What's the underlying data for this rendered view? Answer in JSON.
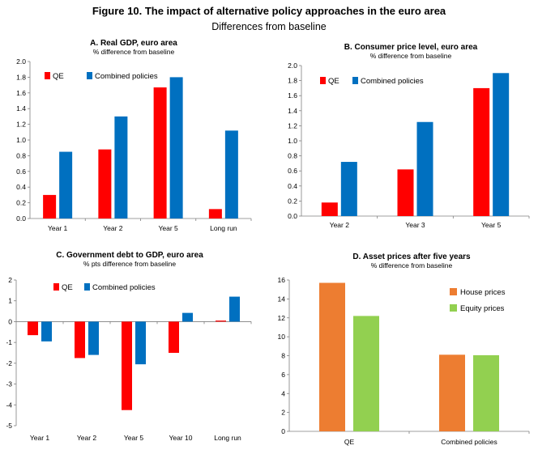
{
  "figure": {
    "title": "Figure 10. The impact of alternative policy approaches in the euro area",
    "subtitle": "Differences from baseline"
  },
  "colors": {
    "qe": "#ff0000",
    "combined": "#0070c0",
    "house": "#ed7d31",
    "equity": "#92d050",
    "axis": "#7f7f7f"
  },
  "chart_data": [
    {
      "id": "A",
      "type": "bar",
      "title": "A. Real GDP, euro area",
      "subtitle": "% difference from baseline",
      "categories": [
        "Year 1",
        "Year 2",
        "Year 5",
        "Long run"
      ],
      "series": [
        {
          "name": "QE",
          "values": [
            0.3,
            0.88,
            1.67,
            0.12
          ]
        },
        {
          "name": "Combined policies",
          "values": [
            0.85,
            1.3,
            1.8,
            1.12
          ]
        }
      ],
      "ylim": [
        0,
        2.0
      ],
      "ticks": [
        "0.0",
        "0.2",
        "0.4",
        "0.6",
        "0.8",
        "1.0",
        "1.2",
        "1.4",
        "1.6",
        "1.8",
        "2.0"
      ],
      "legend": "top-left",
      "grid": false
    },
    {
      "id": "B",
      "type": "bar",
      "title": "B. Consumer price level, euro area",
      "subtitle": "% difference from baseline",
      "categories": [
        "Year 2",
        "Year 3",
        "Year 5"
      ],
      "series": [
        {
          "name": "QE",
          "values": [
            0.18,
            0.62,
            1.7
          ]
        },
        {
          "name": "Combined policies",
          "values": [
            0.72,
            1.25,
            1.9
          ]
        }
      ],
      "ylim": [
        0,
        2.0
      ],
      "ticks": [
        "0.0",
        "0.2",
        "0.4",
        "0.6",
        "0.8",
        "1.0",
        "1.2",
        "1.4",
        "1.6",
        "1.8",
        "2.0"
      ],
      "legend": "top-left",
      "grid": false
    },
    {
      "id": "C",
      "type": "bar",
      "title": "C. Government  debt to GDP, euro area",
      "subtitle": "% pts difference from baseline",
      "categories": [
        "Year 1",
        "Year 2",
        "Year 5",
        "Year 10",
        "Long run"
      ],
      "series": [
        {
          "name": "QE",
          "values": [
            -0.65,
            -1.75,
            -4.25,
            -1.5,
            0.05
          ]
        },
        {
          "name": "Combined policies",
          "values": [
            -0.95,
            -1.6,
            -2.05,
            0.42,
            1.2
          ]
        }
      ],
      "ylim": [
        -5,
        2
      ],
      "ticks": [
        "-5",
        "-4",
        "-3",
        "-2",
        "-1",
        "0",
        "1",
        "2"
      ],
      "legend": "top-left",
      "grid": false
    },
    {
      "id": "D",
      "type": "bar",
      "title": "D. Asset prices after five years",
      "subtitle": "% difference from baseline",
      "categories": [
        "QE",
        "Combined policies"
      ],
      "series": [
        {
          "name": "House prices",
          "values": [
            15.7,
            8.1
          ]
        },
        {
          "name": "Equity prices",
          "values": [
            12.2,
            8.05
          ]
        }
      ],
      "ylim": [
        0,
        16
      ],
      "ticks": [
        "0",
        "2",
        "4",
        "6",
        "8",
        "10",
        "12",
        "14",
        "16"
      ],
      "legend": "top-right",
      "grid": false
    }
  ]
}
